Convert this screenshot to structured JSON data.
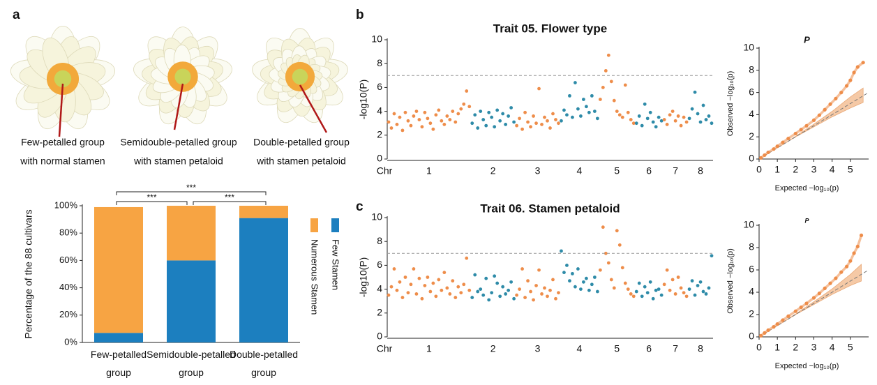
{
  "panel_labels": [
    "a",
    "b",
    "c"
  ],
  "images": [
    {
      "caption": [
        "Few-petalled group",
        "with normal stamen"
      ]
    },
    {
      "caption": [
        "Semidouble-petalled group",
        "with stamen petaloid"
      ]
    },
    {
      "caption": [
        "Double-petalled group",
        "with stamen petaloid"
      ]
    }
  ],
  "chart_data": [
    {
      "type": "stacked_bar",
      "y_label": "Percentage of the 88 cultivars",
      "categories": [
        "Few-petalled group",
        "Semidouble-petalled group",
        "Double-petalled group"
      ],
      "series": [
        {
          "name": "Few Stamen",
          "color": "#1c7fbf",
          "values": [
            7,
            60,
            91
          ]
        },
        {
          "name": "Numerous Stamen",
          "color": "#f7a443",
          "values": [
            92,
            40,
            9
          ]
        }
      ],
      "ylim": [
        0,
        100
      ],
      "yticks": [
        {
          "value": 0,
          "label": "0%"
        },
        {
          "value": 20,
          "label": "20%"
        },
        {
          "value": 40,
          "label": "40%"
        },
        {
          "value": 60,
          "label": "60%"
        },
        {
          "value": 80,
          "label": "80%"
        },
        {
          "value": 100,
          "label": "100%"
        }
      ],
      "significance": [
        {
          "groups": [
            0,
            1
          ],
          "label": "***"
        },
        {
          "groups": [
            1,
            2
          ],
          "label": "***"
        },
        {
          "groups": [
            0,
            2
          ],
          "label": "***"
        }
      ]
    },
    {
      "type": "manhattan",
      "title": "Trait 05. Flower type",
      "y_label": "-log10(P)",
      "x_label": "Chr",
      "ylim": [
        0,
        10
      ],
      "yticks": [
        0,
        2,
        4,
        6,
        8,
        10
      ],
      "threshold": 7,
      "series": [
        {
          "name": "1",
          "color": "#ee8d4a",
          "values": [
            3.1,
            2.6,
            3.8,
            2.9,
            3.5,
            2.4,
            3.9,
            3.2,
            2.8,
            3.6,
            4.0,
            3.3,
            2.7,
            3.9,
            3.4,
            3.0,
            2.5,
            3.7,
            4.1,
            3.2,
            2.9,
            3.6,
            3.3,
            4.0,
            3.1,
            3.8,
            4.2,
            4.6,
            5.7,
            4.4
          ]
        },
        {
          "name": "2",
          "color": "#2e8ba8",
          "values": [
            3.0,
            3.7,
            2.6,
            4.0,
            3.3,
            2.8,
            3.9,
            3.5,
            2.7,
            4.1,
            3.2,
            3.8,
            2.9,
            3.6,
            4.3,
            3.1
          ]
        },
        {
          "name": "3",
          "color": "#ee8d4a",
          "values": [
            2.8,
            3.4,
            2.5,
            3.9,
            3.1,
            2.7,
            3.6,
            3.0,
            5.9,
            2.9,
            3.5,
            3.2,
            2.6,
            3.8,
            3.3,
            3.0
          ]
        },
        {
          "name": "4",
          "color": "#2e8ba8",
          "values": [
            3.2,
            4.1,
            3.7,
            5.3,
            3.5,
            6.4,
            4.2,
            3.6,
            5.0,
            4.4,
            3.9,
            5.3,
            4.0,
            3.4
          ]
        },
        {
          "name": "5",
          "color": "#ee8d4a",
          "values": [
            5.0,
            6.0,
            7.4,
            8.7,
            6.5,
            4.9,
            4.0,
            3.7,
            3.5,
            6.2,
            3.9,
            3.3,
            3.0
          ]
        },
        {
          "name": "6",
          "color": "#2e8ba8",
          "values": [
            3.0,
            3.6,
            2.8,
            4.6,
            3.4,
            3.9,
            3.1,
            2.7,
            3.5,
            3.2
          ]
        },
        {
          "name": "7",
          "color": "#ee8d4a",
          "values": [
            3.3,
            2.9,
            3.7,
            4.0,
            3.2,
            3.6,
            2.8,
            3.5,
            3.1
          ]
        },
        {
          "name": "8",
          "color": "#2e8ba8",
          "values": [
            3.4,
            4.2,
            5.6,
            3.8,
            3.1,
            4.5,
            3.3,
            3.6,
            3.0
          ]
        }
      ]
    },
    {
      "type": "manhattan",
      "title": "Trait 06. Stamen petaloid",
      "y_label": "-log10(P)",
      "x_label": "Chr",
      "ylim": [
        0,
        10
      ],
      "yticks": [
        0,
        2,
        4,
        6,
        8,
        10
      ],
      "threshold": 7,
      "series": [
        {
          "name": "1",
          "color": "#ee8d4a",
          "values": [
            3.5,
            4.2,
            5.7,
            3.9,
            4.6,
            3.3,
            5.0,
            3.7,
            4.4,
            5.7,
            3.6,
            4.9,
            3.2,
            4.3,
            5.0,
            3.8,
            4.5,
            3.4,
            4.8,
            3.9,
            5.4,
            4.1,
            3.6,
            4.7,
            3.3,
            4.2,
            3.7,
            4.4,
            6.6,
            3.9
          ]
        },
        {
          "name": "2",
          "color": "#2e8ba8",
          "values": [
            3.3,
            5.2,
            3.8,
            4.0,
            3.5,
            4.9,
            3.1,
            3.7,
            5.1,
            4.5,
            3.4,
            4.2,
            3.6,
            3.9,
            4.6,
            3.2
          ]
        },
        {
          "name": "3",
          "color": "#ee8d4a",
          "values": [
            3.5,
            4.0,
            5.7,
            3.3,
            4.7,
            3.8,
            3.1,
            4.3,
            5.6,
            3.6,
            4.1,
            3.4,
            3.9,
            4.8,
            3.2,
            3.7
          ]
        },
        {
          "name": "4",
          "color": "#2e8ba8",
          "values": [
            7.2,
            5.4,
            6.0,
            4.7,
            5.3,
            4.2,
            5.7,
            4.0,
            4.6,
            4.9,
            3.9,
            4.4,
            5.0,
            3.8
          ]
        },
        {
          "name": "5",
          "color": "#ee8d4a",
          "values": [
            5.6,
            9.2,
            7.0,
            6.2,
            4.8,
            4.1,
            8.9,
            7.7,
            5.8,
            4.5,
            4.0,
            3.6,
            3.4
          ]
        },
        {
          "name": "6",
          "color": "#2e8ba8",
          "values": [
            3.8,
            4.5,
            3.4,
            4.2,
            3.7,
            4.6,
            3.2,
            3.9,
            4.0,
            3.5
          ]
        },
        {
          "name": "7",
          "color": "#ee8d4a",
          "values": [
            4.4,
            5.6,
            3.9,
            4.8,
            3.6,
            5.0,
            4.1,
            3.7,
            3.4
          ]
        },
        {
          "name": "8",
          "color": "#2e8ba8",
          "values": [
            4.0,
            4.7,
            3.5,
            4.3,
            4.6,
            3.8,
            3.6,
            4.1,
            6.8
          ]
        }
      ]
    },
    {
      "type": "qq",
      "title": "P",
      "x_label": "Expected −log₁₀(p)",
      "y_label": "Observed −log₁₀(p)",
      "xlim": [
        0,
        6
      ],
      "ylim": [
        0,
        10
      ],
      "xticks": [
        0,
        1,
        2,
        3,
        4,
        5
      ],
      "yticks": [
        0,
        2,
        4,
        6,
        8,
        10
      ],
      "color": "#ee8d4a",
      "band_color": "#f5c9a6",
      "x": [
        0.1,
        0.3,
        0.5,
        0.8,
        1.0,
        1.3,
        1.6,
        2.0,
        2.3,
        2.6,
        3.0,
        3.3,
        3.6,
        3.9,
        4.2,
        4.5,
        4.8,
        5.0,
        5.2,
        5.4,
        5.7
      ],
      "y": [
        0.1,
        0.35,
        0.6,
        0.9,
        1.15,
        1.5,
        1.85,
        2.3,
        2.65,
        3.0,
        3.5,
        3.95,
        4.45,
        4.95,
        5.45,
        6.0,
        6.6,
        7.1,
        7.8,
        8.3,
        8.7
      ],
      "band": {
        "x": [
          1,
          2,
          3,
          4,
          5,
          5.7
        ],
        "lower": [
          1,
          2,
          2.9,
          3.8,
          4.6,
          5.1
        ],
        "upper": [
          1,
          2.05,
          3.15,
          4.3,
          5.6,
          6.4
        ]
      }
    },
    {
      "type": "qq",
      "title": "P",
      "x_label": "Expected −log₁₀(p)",
      "y_label": "Observed −log₁₀(p)",
      "xlim": [
        0,
        6
      ],
      "ylim": [
        0,
        10
      ],
      "xticks": [
        0,
        1,
        2,
        3,
        4,
        5
      ],
      "yticks": [
        0,
        2,
        4,
        6,
        8,
        10
      ],
      "color": "#ee8d4a",
      "band_color": "#f5c9a6",
      "x": [
        0.1,
        0.3,
        0.5,
        0.8,
        1.0,
        1.3,
        1.6,
        2.0,
        2.3,
        2.6,
        3.0,
        3.3,
        3.6,
        3.9,
        4.2,
        4.5,
        4.8,
        5.0,
        5.2,
        5.4,
        5.6
      ],
      "y": [
        0.1,
        0.35,
        0.6,
        0.9,
        1.15,
        1.5,
        1.85,
        2.3,
        2.65,
        3.0,
        3.5,
        3.9,
        4.35,
        4.8,
        5.25,
        5.8,
        6.3,
        6.8,
        7.5,
        8.1,
        9.1
      ],
      "band": {
        "x": [
          1,
          2,
          3,
          4,
          5,
          5.6
        ],
        "lower": [
          1,
          2,
          2.9,
          3.8,
          4.6,
          5.0
        ],
        "upper": [
          1,
          2.05,
          3.15,
          4.3,
          5.6,
          6.5
        ]
      }
    }
  ]
}
